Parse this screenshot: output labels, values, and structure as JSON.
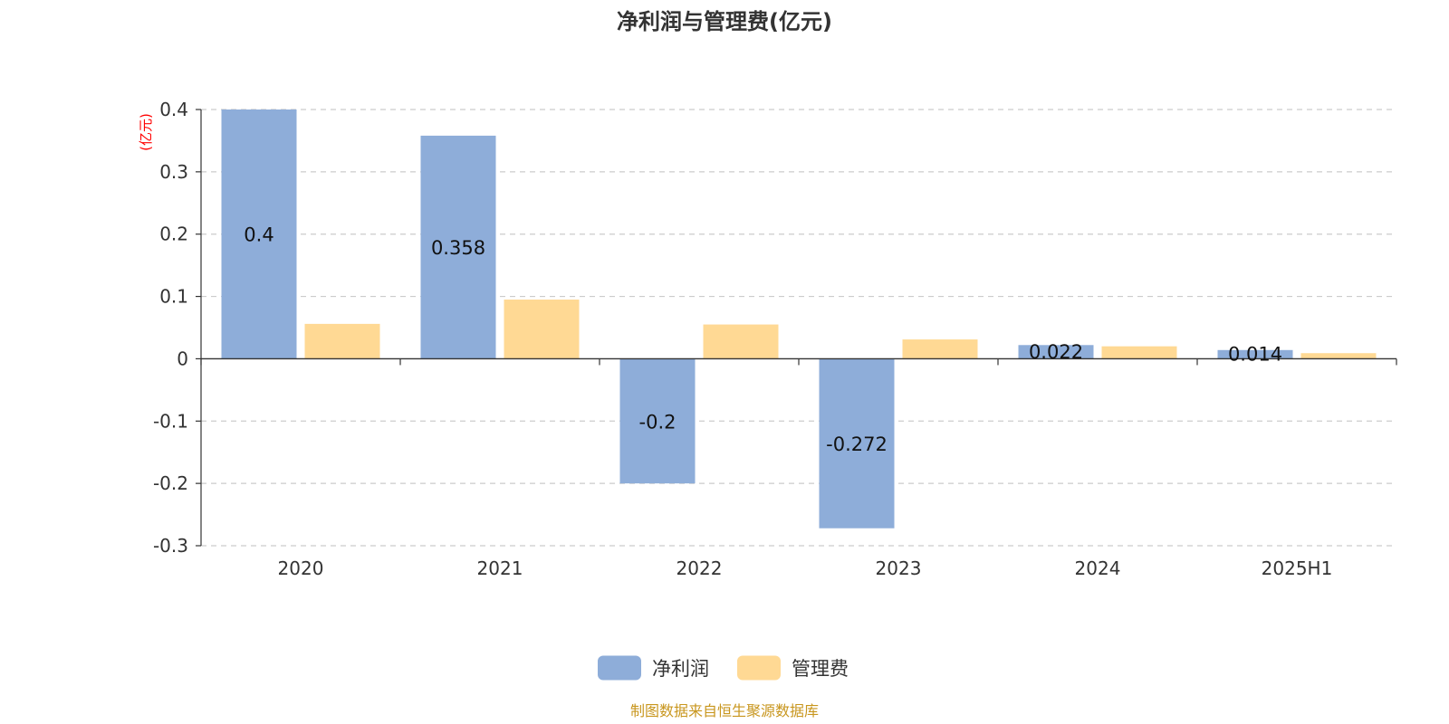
{
  "chart_data": {
    "type": "bar",
    "title": "净利润与管理费(亿元)",
    "y_unit_label": "(亿元)",
    "categories": [
      "2020",
      "2021",
      "2022",
      "2023",
      "2024",
      "2025H1"
    ],
    "series": [
      {
        "name": "净利润",
        "color": "#8eadd9",
        "values": [
          0.4,
          0.358,
          -0.2,
          -0.272,
          0.022,
          0.014
        ],
        "data_labels": [
          "0.4",
          "0.358",
          "-0.2",
          "-0.272",
          "0.022",
          "0.014"
        ]
      },
      {
        "name": "管理费",
        "color": "#ffd994",
        "values": [
          0.056,
          0.095,
          0.055,
          0.031,
          0.02,
          0.009
        ]
      }
    ],
    "ylim": [
      -0.3,
      0.4
    ],
    "y_ticks": [
      {
        "value": 0.4,
        "label": "0.4"
      },
      {
        "value": 0.3,
        "label": "0.3"
      },
      {
        "value": 0.2,
        "label": "0.2"
      },
      {
        "value": 0.1,
        "label": "0.1"
      },
      {
        "value": 0,
        "label": "0"
      },
      {
        "value": -0.1,
        "label": "-0.1"
      },
      {
        "value": -0.2,
        "label": "-0.2"
      },
      {
        "value": -0.3,
        "label": "-0.3"
      }
    ],
    "grid": true,
    "legend_position": "bottom-center",
    "source": "制图数据来自恒生聚源数据库"
  }
}
